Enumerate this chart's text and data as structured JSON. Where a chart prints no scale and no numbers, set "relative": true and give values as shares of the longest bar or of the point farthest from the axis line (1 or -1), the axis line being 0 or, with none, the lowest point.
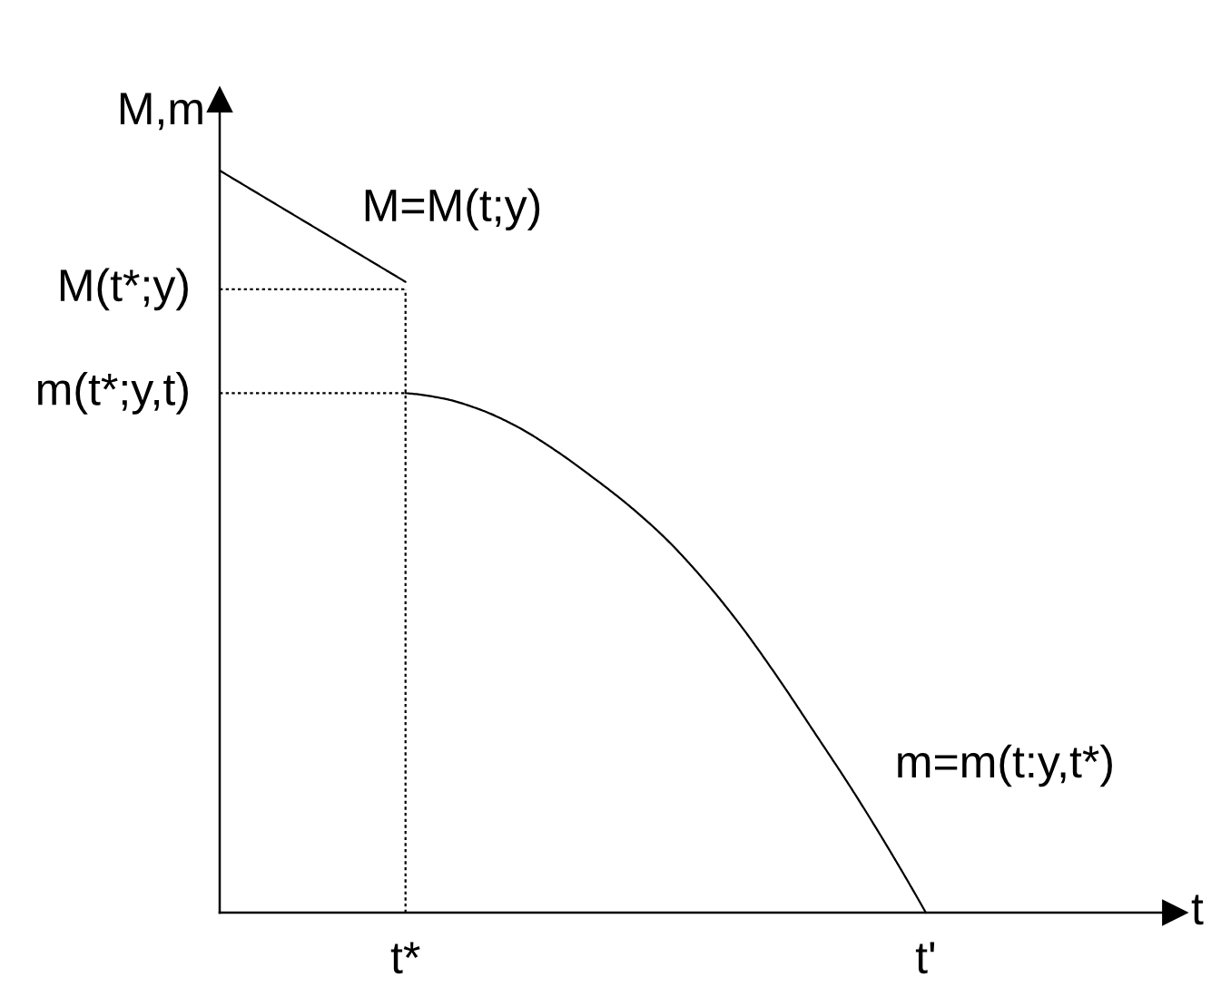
{
  "chart_data": {
    "type": "line",
    "relative": true,
    "xlabel": "t",
    "ylabel": "M,m",
    "categories": [
      null,
      null,
      null,
      null,
      null,
      "t*",
      null,
      null,
      null,
      null,
      null,
      null,
      null,
      null,
      null,
      null,
      null,
      null,
      null,
      "t'",
      null,
      null,
      null,
      null,
      null,
      null
    ],
    "series": [
      {
        "name": "M=M(t;y)",
        "color": "#000000",
        "values": [
          1,
          0.97,
          0.94,
          0.91,
          0.88,
          0.85,
          null,
          null,
          null,
          null,
          null,
          null,
          null,
          null,
          null,
          null,
          null,
          null,
          null,
          null,
          null,
          null,
          null,
          null,
          null,
          null
        ]
      },
      {
        "name": "m=m(t:y,t*)",
        "color": "#000000",
        "values": [
          null,
          null,
          null,
          null,
          null,
          0.7,
          0.693,
          0.678,
          0.655,
          0.624,
          0.588,
          0.549,
          0.504,
          0.45,
          0.388,
          0.318,
          0.243,
          0.167,
          0.086,
          0,
          null,
          null,
          null,
          null,
          null,
          null
        ]
      }
    ],
    "line_style": "solid",
    "ref_lines": [
      {
        "axis": "y",
        "value": 0.84,
        "label": "M(t*;y)",
        "color": "#000000",
        "line_style": "dotted"
      },
      {
        "axis": "y",
        "value": 0.7,
        "label": "m(t*;y,t)",
        "color": "#000000",
        "line_style": "dotted"
      },
      {
        "axis": "x",
        "value": "t*",
        "color": "#000000",
        "line_style": "dotted"
      }
    ]
  }
}
